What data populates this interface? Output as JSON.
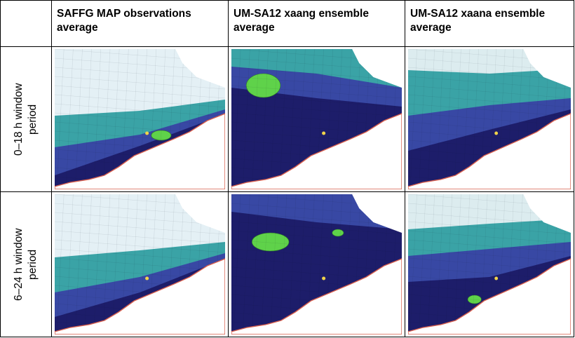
{
  "table": {
    "header": [
      "SAFFG MAP observations average",
      "UM-SA12 xaang ensemble average",
      "UM-SA12 xaana ensemble average"
    ],
    "rows": [
      {
        "label": "0–18 h window period"
      },
      {
        "label": "6–24 h window period"
      }
    ]
  }
}
